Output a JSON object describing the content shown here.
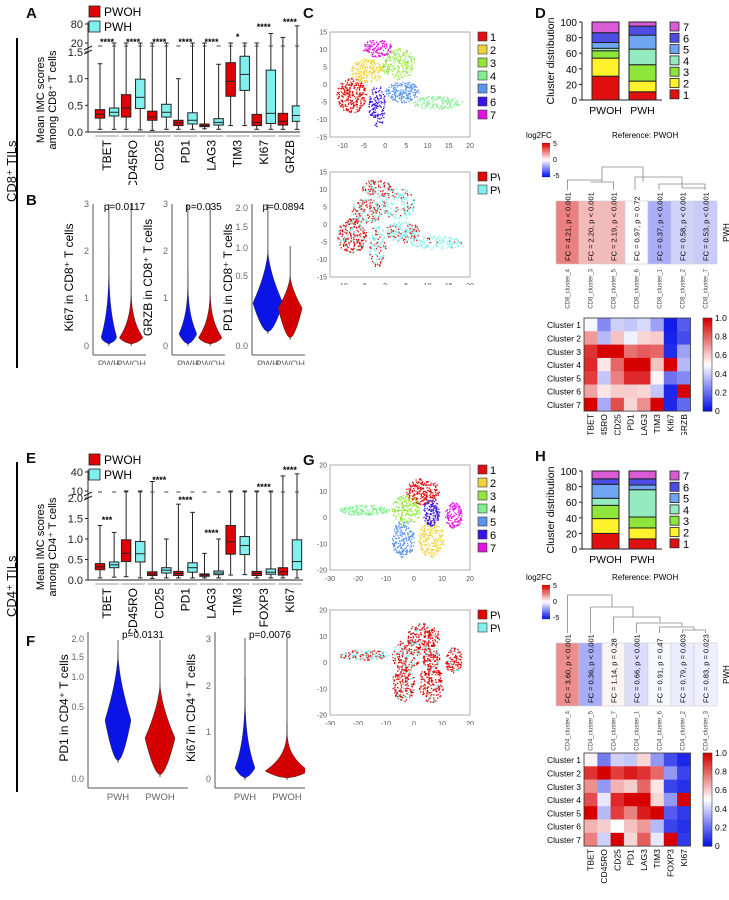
{
  "row_labels": {
    "cd8": "CD8⁺ TILs",
    "cd4": "CD4⁺ TILs"
  },
  "panel_letters": {
    "A": "A",
    "B": "B",
    "C": "C",
    "D": "D",
    "E": "E",
    "F": "F",
    "G": "G",
    "H": "H"
  },
  "colors": {
    "pwoh": "#e30000",
    "pwh": "#7ff0ee",
    "violin_pwh": "#0a14e6",
    "violin_pwoh": "#d40000"
  },
  "chart_data": [
    {
      "id": "A",
      "type": "box",
      "ylabel": "Mean IMC scores among CD8⁺ T cells",
      "legend": [
        "PWOH",
        "PWH"
      ],
      "yticks": [
        "0.0",
        "0.5",
        "1.0",
        "1.5",
        "20",
        "80"
      ],
      "categories": [
        "TBET",
        "CD45RO",
        "CD25",
        "PD1",
        "LAG3",
        "TIM3",
        "KI67",
        "GRZB"
      ],
      "significance": [
        "****",
        "****",
        "****",
        "****",
        "****",
        "*",
        "****",
        "****"
      ],
      "series": [
        {
          "name": "PWOH",
          "boxes": [
            [
              0.05,
              0.26,
              0.33,
              0.42,
              1.28
            ],
            [
              0.05,
              0.28,
              0.45,
              0.7,
              20
            ],
            [
              0.03,
              0.22,
              0.28,
              0.39,
              20
            ],
            [
              0.05,
              0.12,
              0.17,
              0.22,
              1.0
            ],
            [
              0.06,
              0.1,
              0.12,
              0.15,
              20
            ],
            [
              0.12,
              0.67,
              0.95,
              1.3,
              20
            ],
            [
              0.05,
              0.12,
              0.18,
              0.33,
              20
            ],
            [
              0.05,
              0.13,
              0.2,
              0.35,
              30
            ]
          ]
        },
        {
          "name": "PWH",
          "boxes": [
            [
              0.05,
              0.3,
              0.37,
              0.45,
              20
            ],
            [
              0.04,
              0.44,
              0.65,
              0.99,
              20
            ],
            [
              0.05,
              0.28,
              0.37,
              0.52,
              20
            ],
            [
              0.05,
              0.15,
              0.22,
              0.36,
              20
            ],
            [
              0.05,
              0.13,
              0.18,
              0.25,
              1.27
            ],
            [
              0.12,
              0.78,
              1.08,
              1.42,
              20
            ],
            [
              0.05,
              0.16,
              0.35,
              1.16,
              40
            ],
            [
              0.05,
              0.2,
              0.31,
              0.49,
              70
            ]
          ]
        }
      ]
    },
    {
      "id": "B",
      "type": "violin",
      "plots": [
        {
          "ylabel": "Ki67 in CD8⁺ T cells",
          "p": "p=0.0117",
          "yticks": [
            "0",
            "1",
            "2",
            "3"
          ],
          "groups": [
            "PWH",
            "PWOH"
          ]
        },
        {
          "ylabel": "GRZB in CD8⁺ T cells",
          "p": "p=0.035",
          "yticks": [
            "0",
            "1",
            "2",
            "3"
          ],
          "groups": [
            "PWH",
            "PWOH"
          ]
        },
        {
          "ylabel": "PD1 in CD8⁺ T cells",
          "p": "p=0.0894",
          "yticks": [
            "0.0",
            "0.5",
            "1.0",
            "1.5",
            "2.0"
          ],
          "groups": [
            "PWH",
            "PWOH"
          ]
        }
      ]
    },
    {
      "id": "C",
      "type": "scatter",
      "xticks": [
        "-10",
        "-5",
        "0",
        "5",
        "10",
        "15",
        "20"
      ],
      "yticks": [
        "15",
        "10",
        "5",
        "0",
        "-5",
        "-10",
        "-15"
      ],
      "xlim": [
        -13,
        20
      ],
      "ylim": [
        -15,
        15
      ],
      "cluster_legend": [
        "1",
        "2",
        "3",
        "4",
        "5",
        "6",
        "7"
      ],
      "cluster_colors": [
        "#e01010",
        "#f2d23c",
        "#93e63c",
        "#7ff08f",
        "#5a96f0",
        "#3a14e6",
        "#e014e0"
      ],
      "group_legend": [
        "PWOH",
        "PWH"
      ]
    },
    {
      "id": "D",
      "type": "stacked-bar",
      "ylabel": "Cluster distribution",
      "yticks": [
        "0",
        "20",
        "40",
        "60",
        "80",
        "100"
      ],
      "categories": [
        "PWOH",
        "PWH"
      ],
      "legend": [
        "7",
        "6",
        "5",
        "4",
        "3",
        "2",
        "1"
      ],
      "series": [
        {
          "name": "1",
          "values": [
            29,
            10
          ]
        },
        {
          "name": "2",
          "values": [
            22,
            13
          ]
        },
        {
          "name": "3",
          "values": [
            9,
            20
          ]
        },
        {
          "name": "4",
          "values": [
            3,
            19
          ]
        },
        {
          "name": "5",
          "values": [
            7,
            17
          ]
        },
        {
          "name": "6",
          "values": [
            12,
            11
          ]
        },
        {
          "name": "7",
          "values": [
            13,
            5
          ]
        }
      ],
      "fc_title": "Reference: PWOH",
      "fc_scale_label": "log2FC",
      "fc_scale_ticks": [
        "5",
        "0",
        "-5"
      ],
      "fc_row_label": "PWH",
      "fc_cells": [
        {
          "cluster": "CD8_cluster_4",
          "text": "FC = 4.21, p < 0.001",
          "log2fc": 2.07
        },
        {
          "cluster": "CD8_cluster_3",
          "text": "FC = 2.20, p < 0.001",
          "log2fc": 1.14
        },
        {
          "cluster": "CD8_cluster_5",
          "text": "FC = 2.19, p < 0.001",
          "log2fc": 1.13
        },
        {
          "cluster": "CD8_cluster_6",
          "text": "FC = 0.97, p = 0.72",
          "log2fc": -0.04
        },
        {
          "cluster": "CD8_cluster_1",
          "text": "FC = 0.37, p < 0.001",
          "log2fc": -1.43
        },
        {
          "cluster": "CD8_cluster_2",
          "text": "FC = 0.58, p < 0.001",
          "log2fc": -0.79
        },
        {
          "cluster": "CD8_cluster_7",
          "text": "FC = 0.53, p < 0.001",
          "log2fc": -0.92
        }
      ],
      "heatmap": {
        "rows": [
          "Cluster 1",
          "Cluster 2",
          "Cluster 3",
          "Cluster 4",
          "Cluster 5",
          "Cluster 6",
          "Cluster 7"
        ],
        "cols": [
          "TBET",
          "CD45RO",
          "CD25",
          "PD1",
          "LAG3",
          "TIM3",
          "KI67",
          "GRZB"
        ],
        "scale_ticks": [
          "1.0",
          "0.8",
          "0.6",
          "0.4",
          "0.2",
          "0"
        ],
        "values": [
          [
            0.48,
            0.25,
            0.4,
            0.38,
            0.42,
            0.3,
            0.02,
            0.15
          ],
          [
            0.7,
            0.35,
            0.62,
            0.47,
            0.58,
            0.6,
            0.03,
            0.12
          ],
          [
            0.9,
            1.0,
            1.0,
            0.78,
            0.82,
            0.8,
            0.05,
            0.3
          ],
          [
            0.92,
            0.55,
            0.8,
            1.0,
            1.0,
            0.62,
            1.0,
            0.35
          ],
          [
            0.88,
            0.38,
            0.75,
            0.92,
            0.92,
            0.52,
            0.2,
            0.25
          ],
          [
            0.68,
            0.55,
            0.6,
            0.6,
            0.58,
            0.38,
            0.04,
            1.0
          ],
          [
            1.0,
            0.32,
            0.85,
            0.58,
            0.72,
            1.0,
            0.04,
            0.18
          ]
        ]
      }
    },
    {
      "id": "E",
      "type": "box",
      "ylabel": "Mean IMC scores among CD4⁺ T cells",
      "legend": [
        "PWOH",
        "PWH"
      ],
      "yticks": [
        "0.0",
        "0.5",
        "1.0",
        "1.5",
        "2.0",
        "10",
        "40"
      ],
      "categories": [
        "TBET",
        "CD45RO",
        "CD25",
        "PD1",
        "LAG3",
        "TIM3",
        "FOXP3",
        "KI67"
      ],
      "significance": [
        "***",
        "",
        "****",
        "****",
        "****",
        "",
        "****",
        "****"
      ],
      "series": [
        {
          "name": "PWOH",
          "boxes": [
            [
              0.05,
              0.25,
              0.32,
              0.4,
              1.33
            ],
            [
              0.08,
              0.45,
              0.65,
              0.98,
              10
            ],
            [
              0.04,
              0.11,
              0.15,
              0.2,
              20
            ],
            [
              0.05,
              0.11,
              0.16,
              0.21,
              1.85
            ],
            [
              0.05,
              0.09,
              0.12,
              0.15,
              0.65
            ],
            [
              0.12,
              0.63,
              0.93,
              1.33,
              10
            ],
            [
              0.05,
              0.11,
              0.16,
              0.21,
              10
            ],
            [
              0.05,
              0.12,
              0.2,
              0.3,
              30
            ]
          ]
        },
        {
          "name": "PWH",
          "boxes": [
            [
              0.07,
              0.3,
              0.37,
              0.44,
              1.16
            ],
            [
              0.05,
              0.44,
              0.64,
              0.94,
              10
            ],
            [
              0.05,
              0.17,
              0.24,
              0.3,
              1.0
            ],
            [
              0.05,
              0.19,
              0.3,
              0.42,
              1.65
            ],
            [
              0.05,
              0.13,
              0.17,
              0.22,
              1.0
            ],
            [
              0.13,
              0.62,
              0.84,
              1.06,
              10
            ],
            [
              0.05,
              0.14,
              0.19,
              0.27,
              10
            ],
            [
              0.05,
              0.25,
              0.45,
              0.98,
              35
            ]
          ]
        }
      ]
    },
    {
      "id": "F",
      "type": "violin",
      "plots": [
        {
          "ylabel": "PD1 in CD4⁺ T cells",
          "p": "p=0.0131",
          "yticks": [
            "0.0",
            "0.5",
            "1.0",
            "1.5",
            "2.0"
          ],
          "groups": [
            "PWH",
            "PWOH"
          ]
        },
        {
          "ylabel": "Ki67 in CD4⁺ T cells",
          "p": "p=0.0076",
          "yticks": [
            "0",
            "1",
            "2",
            "3"
          ],
          "groups": [
            "PWH",
            "PWOH"
          ]
        }
      ]
    },
    {
      "id": "G",
      "type": "scatter",
      "xticks": [
        "-30",
        "-20",
        "-10",
        "0",
        "10",
        "20"
      ],
      "yticks": [
        "20",
        "10",
        "0",
        "-10",
        "-20"
      ],
      "xlim": [
        -30,
        20
      ],
      "ylim": [
        -20,
        20
      ],
      "cluster_legend": [
        "1",
        "2",
        "3",
        "4",
        "5",
        "6",
        "7"
      ],
      "cluster_colors": [
        "#e01010",
        "#f2d23c",
        "#93e63c",
        "#7ff08f",
        "#5a96f0",
        "#3a14e6",
        "#e014e0"
      ],
      "group_legend": [
        "PWOH",
        "PWH"
      ]
    },
    {
      "id": "H",
      "type": "stacked-bar",
      "ylabel": "Cluster distribution",
      "yticks": [
        "0",
        "20",
        "40",
        "60",
        "80",
        "100"
      ],
      "categories": [
        "PWOH",
        "PWH"
      ],
      "legend": [
        "7",
        "6",
        "5",
        "4",
        "3",
        "2",
        "1"
      ],
      "series": [
        {
          "name": "1",
          "values": [
            20,
            13
          ]
        },
        {
          "name": "2",
          "values": [
            19,
            14
          ]
        },
        {
          "name": "3",
          "values": [
            17,
            14
          ]
        },
        {
          "name": "4",
          "values": [
            9,
            35
          ]
        },
        {
          "name": "5",
          "values": [
            18,
            6
          ]
        },
        {
          "name": "6",
          "values": [
            7,
            8
          ]
        },
        {
          "name": "7",
          "values": [
            10,
            10
          ]
        }
      ],
      "fc_title": "Reference: PWOH",
      "fc_scale_label": "log2FC",
      "fc_scale_ticks": [
        "5",
        "0",
        "-5"
      ],
      "fc_row_label": "PWH",
      "fc_cells": [
        {
          "cluster": "CD4_cluster_4",
          "text": "FC = 3.60, p < 0.001",
          "log2fc": 1.85
        },
        {
          "cluster": "CD4_cluster_5",
          "text": "FC = 0.36, p < 0.001",
          "log2fc": -1.47
        },
        {
          "cluster": "CD4_cluster_7",
          "text": "FC = 1.14, p = 0.28",
          "log2fc": 0.19
        },
        {
          "cluster": "CD4_cluster_1",
          "text": "FC = 0.66, p < 0.001",
          "log2fc": -0.6
        },
        {
          "cluster": "CD4_cluster_6",
          "text": "FC = 0.91, p = 0.47",
          "log2fc": -0.14
        },
        {
          "cluster": "CD4_cluster_2",
          "text": "FC = 0.79, p = 0.003",
          "log2fc": -0.34
        },
        {
          "cluster": "CD4_cluster_3",
          "text": "FC = 0.83, p = 0.023",
          "log2fc": -0.27
        }
      ],
      "heatmap": {
        "rows": [
          "Cluster 1",
          "Cluster 2",
          "Cluster 3",
          "Cluster 4",
          "Cluster 5",
          "Cluster 6",
          "Cluster 7"
        ],
        "cols": [
          "TBET",
          "CD45RO",
          "CD25",
          "PD1",
          "LAG3",
          "TIM3",
          "FOXP3",
          "KI67"
        ],
        "scale_ticks": [
          "1.0",
          "0.8",
          "0.6",
          "0.4",
          "0.2",
          "0"
        ],
        "values": [
          [
            0.52,
            0.22,
            0.4,
            0.38,
            0.58,
            0.28,
            0.12,
            0.04
          ],
          [
            0.9,
            1.0,
            0.88,
            0.95,
            0.9,
            0.8,
            0.28,
            0.1
          ],
          [
            0.72,
            0.28,
            0.65,
            0.6,
            0.8,
            0.55,
            0.1,
            0.06
          ],
          [
            0.85,
            0.45,
            0.92,
            1.0,
            1.0,
            0.58,
            0.28,
            1.0
          ],
          [
            1.0,
            0.35,
            0.88,
            0.75,
            0.95,
            1.0,
            0.15,
            0.08
          ],
          [
            0.65,
            0.6,
            0.5,
            0.62,
            0.7,
            0.35,
            0.1,
            0.06
          ],
          [
            0.75,
            0.4,
            1.0,
            0.58,
            0.82,
            0.45,
            1.0,
            0.08
          ]
        ]
      }
    }
  ]
}
